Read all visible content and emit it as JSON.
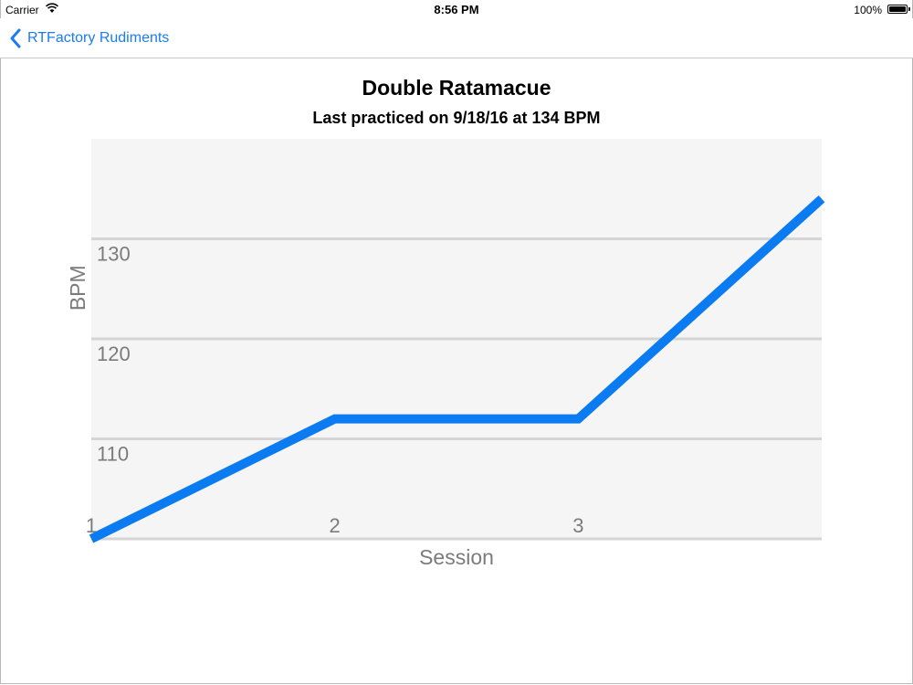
{
  "status_bar": {
    "carrier": "Carrier",
    "time": "8:56 PM",
    "battery": "100%"
  },
  "nav": {
    "back_label": "RTFactory Rudiments"
  },
  "chart_data": {
    "type": "line",
    "title": "Double Ratamacue",
    "subtitle": "Last practiced on 9/18/16 at 134 BPM",
    "xlabel": "Session",
    "ylabel": "BPM",
    "x": [
      1,
      2,
      3,
      4
    ],
    "x_tick_labels": [
      "1",
      "2",
      "3"
    ],
    "y_ticks": [
      110,
      120,
      130
    ],
    "xlim": [
      1,
      4
    ],
    "ylim": [
      100,
      140
    ],
    "series": [
      {
        "values": [
          100,
          112,
          112,
          134
        ]
      }
    ],
    "grid": "horizontal",
    "colors": {
      "line": "#0a7bf0",
      "plot_bg": "#f5f5f5",
      "grid": "#d5d5d5",
      "axis_text": "#7b7b7b"
    }
  }
}
